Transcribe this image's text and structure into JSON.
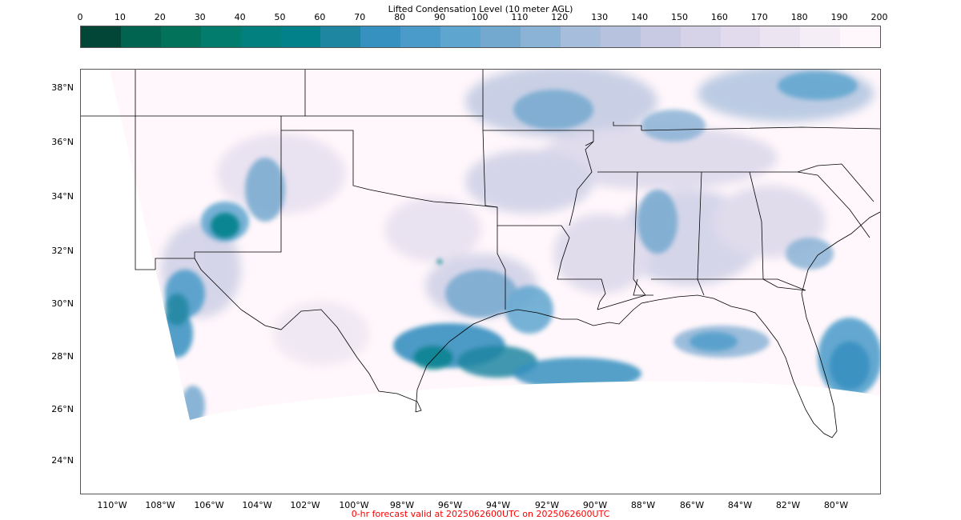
{
  "colorbar": {
    "title": "Lifted Condensation Level (10 meter AGL)",
    "tick_labels": [
      "0",
      "10",
      "20",
      "30",
      "40",
      "50",
      "60",
      "70",
      "80",
      "90",
      "100",
      "110",
      "120",
      "130",
      "140",
      "150",
      "160",
      "170",
      "180",
      "190",
      "200"
    ],
    "colors": [
      "#014636",
      "#016450",
      "#02725b",
      "#027d6d",
      "#028080",
      "#02818a",
      "#1f86a1",
      "#3690c0",
      "#4a9bc9",
      "#5ea5cf",
      "#74a9cf",
      "#8bb3d6",
      "#a6bddb",
      "#b7c3de",
      "#c8cae3",
      "#d6d3e8",
      "#e2dbed",
      "#ece4f0",
      "#f5eef6",
      "#fff7fb"
    ]
  },
  "map": {
    "lat_labels": [
      "38°N",
      "36°N",
      "34°N",
      "32°N",
      "30°N",
      "28°N",
      "26°N",
      "24°N"
    ],
    "lon_labels": [
      "110°W",
      "108°W",
      "106°W",
      "104°W",
      "102°W",
      "100°W",
      "98°W",
      "96°W",
      "94°W",
      "92°W",
      "90°W",
      "88°W",
      "86°W",
      "84°W",
      "82°W",
      "80°W"
    ]
  },
  "footer": {
    "text": "0-hr forecast valid at 2025062600UTC on 2025062600UTC",
    "color": "#ff0000"
  }
}
